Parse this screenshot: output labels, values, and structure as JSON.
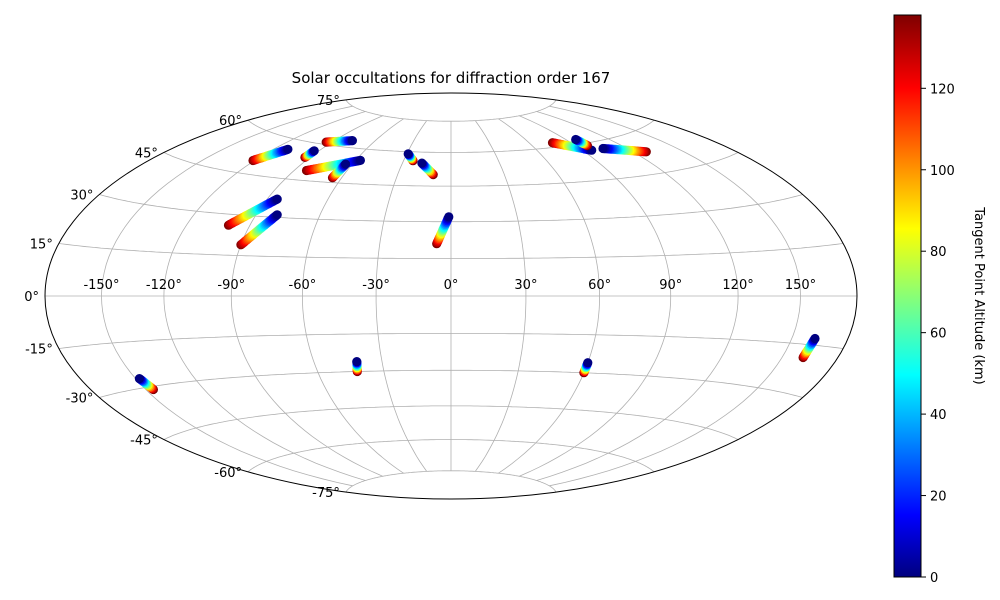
{
  "chart_data": {
    "type": "scatter",
    "projection": "hammer",
    "title": "Solar occultations for diffraction order 167",
    "longitude_ticks": [
      "-150°",
      "-120°",
      "-90°",
      "-60°",
      "-30°",
      "0°",
      "30°",
      "60°",
      "90°",
      "120°",
      "150°"
    ],
    "longitude_tick_values": [
      -150,
      -120,
      -90,
      -60,
      -30,
      0,
      30,
      60,
      90,
      120,
      150
    ],
    "latitude_ticks": [
      "-75°",
      "-60°",
      "-45°",
      "-30°",
      "-15°",
      "0°",
      "15°",
      "30°",
      "45°",
      "60°",
      "75°"
    ],
    "latitude_tick_values": [
      -75,
      -60,
      -45,
      -30,
      -15,
      0,
      15,
      30,
      45,
      60,
      75
    ],
    "grid": true,
    "colorbar": {
      "label": "Tangent Point Altitude (km)",
      "colormap": "jet",
      "range": [
        0,
        138
      ],
      "ticks": [
        "0",
        "20",
        "40",
        "60",
        "80",
        "100",
        "120"
      ],
      "tick_values": [
        0,
        20,
        40,
        60,
        80,
        100,
        120
      ]
    },
    "occultations": [
      {
        "lon_start": -77,
        "lat_start": 63,
        "lon_end": -94,
        "lat_end": 61
      },
      {
        "lon_start": -111,
        "lat_start": 56,
        "lon_end": -121,
        "lat_end": 50
      },
      {
        "lon_start": -93,
        "lat_start": 57,
        "lon_end": -93,
        "lat_end": 54
      },
      {
        "lon_start": -57,
        "lat_start": 55,
        "lon_end": -83,
        "lat_end": 49
      },
      {
        "lon_start": -64,
        "lat_start": 53,
        "lon_end": -65,
        "lat_end": 47
      },
      {
        "lon_start": -29,
        "lat_start": 59,
        "lon_end": -24,
        "lat_end": 56
      },
      {
        "lon_start": -18,
        "lat_start": 55,
        "lon_end": -10,
        "lat_end": 50
      },
      {
        "lon_start": 96,
        "lat_start": 57,
        "lon_end": 77,
        "lat_end": 62
      },
      {
        "lon_start": 97,
        "lat_start": 62,
        "lon_end": 98,
        "lat_end": 59
      },
      {
        "lon_start": 105,
        "lat_start": 57,
        "lon_end": 128,
        "lat_end": 53
      },
      {
        "lon_start": -85,
        "lat_start": 37,
        "lon_end": -100,
        "lat_end": 26
      },
      {
        "lon_start": -80,
        "lat_start": 31,
        "lon_end": -90,
        "lat_end": 19
      },
      {
        "lon_start": -1,
        "lat_start": 32,
        "lon_end": -6,
        "lat_end": 21
      },
      {
        "lon_start": -148,
        "lat_start": -27,
        "lon_end": -146,
        "lat_end": -31
      },
      {
        "lon_start": -41,
        "lat_start": -26,
        "lon_end": -42,
        "lat_end": -30
      },
      {
        "lon_start": 60,
        "lat_start": -26,
        "lon_end": 60,
        "lat_end": -30
      },
      {
        "lon_start": 162,
        "lat_start": -13,
        "lon_end": 161,
        "lat_end": -19
      }
    ]
  }
}
